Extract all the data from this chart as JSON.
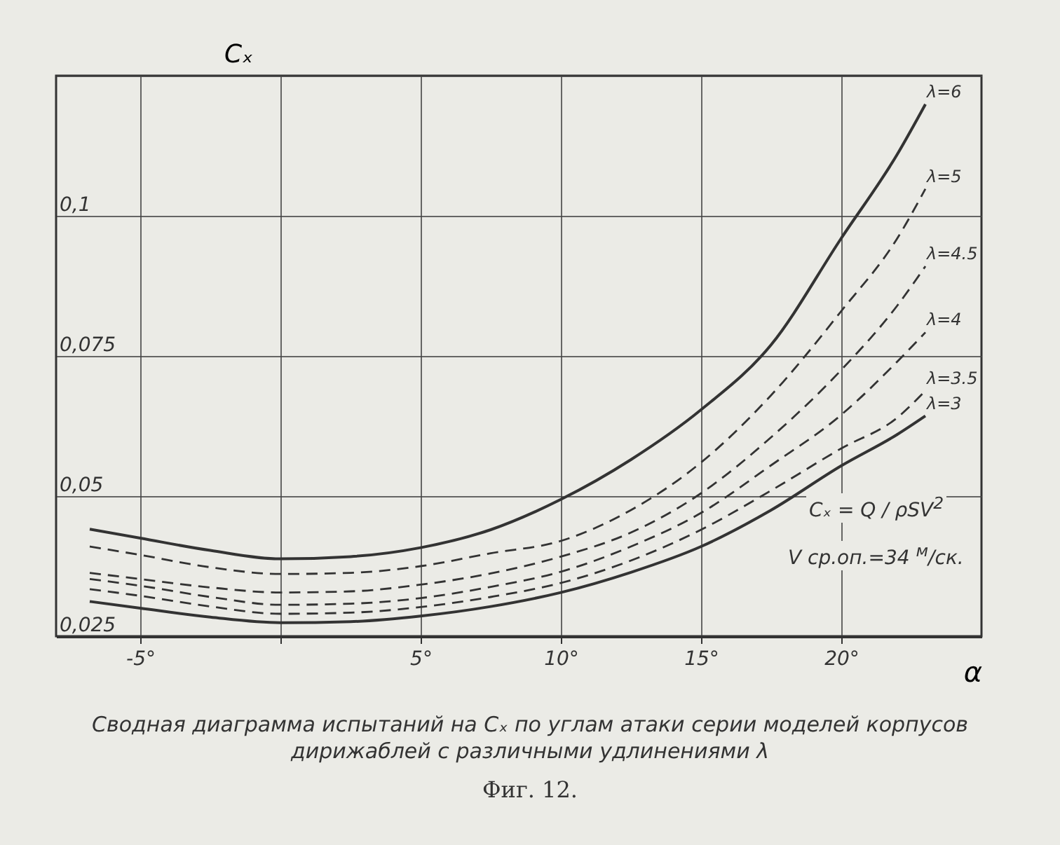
{
  "chart_data": {
    "type": "line",
    "xlabel": "α",
    "ylabel": "Cₓ",
    "x": [
      -6.8,
      -5,
      -2.5,
      0,
      2.5,
      5,
      7.5,
      10,
      12.5,
      15,
      17.5,
      20,
      22,
      23
    ],
    "series": [
      {
        "name": "λ=6",
        "color": "#333333",
        "line_style": "solid",
        "values": [
          0.0441,
          0.0425,
          0.0403,
          0.0388,
          0.0392,
          0.0408,
          0.044,
          0.0494,
          0.0565,
          0.0654,
          0.077,
          0.096,
          0.111,
          0.1199
        ]
      },
      {
        "name": "λ=5",
        "color": "#333333",
        "line_style": "dashed",
        "values": [
          0.041,
          0.0395,
          0.0373,
          0.0361,
          0.0363,
          0.0375,
          0.0398,
          0.042,
          0.0475,
          0.056,
          0.068,
          0.083,
          0.096,
          0.1048
        ]
      },
      {
        "name": "λ=4.5",
        "color": "#333333",
        "line_style": "dashed",
        "values": [
          0.0363,
          0.0352,
          0.0337,
          0.0328,
          0.033,
          0.0342,
          0.0362,
          0.0392,
          0.0435,
          0.0505,
          0.0605,
          0.0725,
          0.084,
          0.091
        ]
      },
      {
        "name": "λ=4",
        "color": "#333333",
        "line_style": "dashed",
        "values": [
          0.0352,
          0.034,
          0.032,
          0.0306,
          0.0308,
          0.0318,
          0.0338,
          0.0365,
          0.041,
          0.047,
          0.0555,
          0.0645,
          0.074,
          0.0792
        ]
      },
      {
        "name": "λ=3.5",
        "color": "#333333",
        "line_style": "dashed",
        "values": [
          0.0334,
          0.0322,
          0.0303,
          0.029,
          0.0292,
          0.0302,
          0.032,
          0.0345,
          0.0385,
          0.044,
          0.051,
          0.0585,
          0.064,
          0.0688
        ]
      },
      {
        "name": "λ=3",
        "color": "#333333",
        "line_style": "solid",
        "values": [
          0.0312,
          0.03,
          0.0284,
          0.0274,
          0.0276,
          0.0286,
          0.0303,
          0.0328,
          0.0364,
          0.041,
          0.0475,
          0.0554,
          0.061,
          0.0643
        ]
      }
    ],
    "xlim": [
      -8,
      25
    ],
    "ylim": [
      0.025,
      0.125
    ],
    "xticks": [
      {
        "value": -5,
        "label": "-5°"
      },
      {
        "value": 0,
        "label": null
      },
      {
        "value": 5,
        "label": "5°"
      },
      {
        "value": 10,
        "label": "10°"
      },
      {
        "value": 15,
        "label": "15°"
      },
      {
        "value": 20,
        "label": "20°"
      }
    ],
    "yticks": [
      {
        "value": 0.025,
        "label": "0,025"
      },
      {
        "value": 0.05,
        "label": "0,05"
      },
      {
        "value": 0.075,
        "label": "0,075"
      },
      {
        "value": 0.1,
        "label": "0,1"
      },
      {
        "value": 0.125,
        "label": null
      }
    ],
    "grid": true,
    "annotations": [
      "Cₓ = Q / ρSV$^{2}$",
      "V ср.оп.=34 $^{м}$/ск.",
      "Сводная диаграмма испытаний на Cₓ по углам атаки серии моделей корпусов дирижаблей с различными удлинениями λ",
      "Фиг. 12."
    ]
  }
}
